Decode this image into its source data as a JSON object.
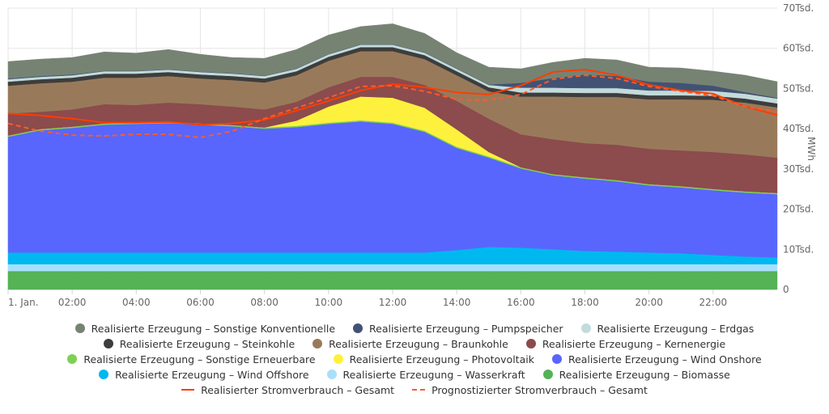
{
  "chart_data": {
    "type": "area",
    "stacked": true,
    "x_labels": [
      "1. Jan.",
      "02:00",
      "04:00",
      "06:00",
      "08:00",
      "10:00",
      "12:00",
      "14:00",
      "16:00",
      "18:00",
      "20:00",
      "22:00"
    ],
    "x_hours": [
      0,
      1,
      2,
      3,
      4,
      5,
      6,
      7,
      8,
      9,
      10,
      11,
      12,
      13,
      14,
      15,
      16,
      17,
      18,
      19,
      20,
      21,
      22,
      23,
      24
    ],
    "ylabel": "MWh",
    "ylim": [
      0,
      70000
    ],
    "y_ticks": [
      "0",
      "10Tsd.",
      "20Tsd.",
      "30Tsd.",
      "40Tsd.",
      "50Tsd.",
      "60Tsd.",
      "70Tsd."
    ],
    "grid": true,
    "legend_position": "bottom",
    "series": [
      {
        "name": "Realisierte Erzeugung – Biomasse",
        "color": "#55b255",
        "values": [
          4600,
          4600,
          4600,
          4600,
          4600,
          4600,
          4600,
          4600,
          4600,
          4600,
          4600,
          4600,
          4600,
          4600,
          4600,
          4600,
          4600,
          4600,
          4600,
          4600,
          4600,
          4600,
          4600,
          4600,
          4600
        ]
      },
      {
        "name": "Realisierte Erzeugung – Wasserkraft",
        "color": "#a8e0fb",
        "values": [
          1700,
          1700,
          1700,
          1700,
          1700,
          1700,
          1700,
          1700,
          1700,
          1700,
          1700,
          1700,
          1700,
          1700,
          1700,
          1700,
          1700,
          1700,
          1700,
          1700,
          1700,
          1700,
          1700,
          1700,
          1700
        ]
      },
      {
        "name": "Realisierte Erzeugung – Wind Offshore",
        "color": "#00b8f0",
        "values": [
          2900,
          2900,
          2900,
          2900,
          2900,
          2900,
          2900,
          2900,
          2900,
          2900,
          2900,
          2900,
          2900,
          2900,
          3500,
          4300,
          4100,
          3700,
          3300,
          3100,
          2900,
          2700,
          2300,
          1900,
          1700
        ]
      },
      {
        "name": "Realisierte Erzeugung – Wind Onshore",
        "color": "#5866fd",
        "values": [
          28800,
          30400,
          31000,
          31800,
          32000,
          32200,
          31800,
          31400,
          30800,
          31200,
          32000,
          32600,
          32000,
          30000,
          25400,
          22200,
          19700,
          18400,
          18000,
          17500,
          16700,
          16400,
          16100,
          15900,
          15700
        ]
      },
      {
        "name": "Realisierte Erzeugung – Sonstige Erneuerbare",
        "color": "#7ed055",
        "values": [
          300,
          300,
          300,
          300,
          300,
          300,
          300,
          300,
          300,
          300,
          300,
          300,
          300,
          300,
          300,
          300,
          300,
          300,
          300,
          300,
          300,
          300,
          300,
          300,
          300
        ]
      },
      {
        "name": "Realisierte Erzeugung – Photovoltaik",
        "color": "#fdf13d",
        "values": [
          0,
          0,
          0,
          0,
          0,
          0,
          0,
          0,
          0,
          1300,
          4000,
          5900,
          6200,
          5700,
          4300,
          1100,
          0,
          0,
          0,
          0,
          0,
          0,
          0,
          0,
          0
        ]
      },
      {
        "name": "Realisierte Erzeugung – Kernenergie",
        "color": "#8c4b4c",
        "values": [
          5500,
          4300,
          4300,
          4800,
          4400,
          4800,
          4800,
          4600,
          4500,
          4700,
          4800,
          4900,
          5200,
          5700,
          7100,
          8300,
          8200,
          8700,
          8500,
          8800,
          8800,
          8900,
          9200,
          9200,
          8800
        ]
      },
      {
        "name": "Realisierte Erzeugung – Braunkohle",
        "color": "#987a5b",
        "values": [
          6900,
          7100,
          6900,
          6600,
          6800,
          6600,
          6400,
          6600,
          6700,
          6600,
          6600,
          6400,
          6400,
          6400,
          6400,
          6800,
          9400,
          10600,
          11500,
          11900,
          12300,
          12700,
          13000,
          12900,
          12500
        ]
      },
      {
        "name": "Realisierte Erzeugung – Steinkohle",
        "color": "#3d3d3d",
        "values": [
          1000,
          1000,
          1000,
          1000,
          1000,
          1000,
          1000,
          1000,
          1000,
          1000,
          1000,
          1000,
          1000,
          1000,
          1000,
          1000,
          1000,
          1000,
          1000,
          1000,
          1000,
          1000,
          1000,
          1000,
          1000
        ]
      },
      {
        "name": "Realisierte Erzeugung – Erdgas",
        "color": "#c3dbdb",
        "values": [
          600,
          600,
          600,
          600,
          600,
          600,
          600,
          600,
          600,
          600,
          600,
          600,
          600,
          600,
          600,
          600,
          1200,
          1200,
          1200,
          1200,
          1200,
          1200,
          1200,
          1200,
          1200
        ]
      },
      {
        "name": "Realisierte Erzeugung – Pumpspeicher",
        "color": "#425274",
        "values": [
          200,
          200,
          200,
          100,
          100,
          100,
          100,
          100,
          100,
          100,
          100,
          100,
          100,
          100,
          100,
          100,
          1200,
          2400,
          3400,
          3000,
          2200,
          1900,
          1300,
          400,
          200
        ]
      },
      {
        "name": "Realisierte Erzeugung – Sonstige Konventionelle",
        "color": "#768373",
        "values": [
          4200,
          4200,
          4200,
          4700,
          4400,
          4900,
          4300,
          3900,
          4300,
          4700,
          4700,
          4400,
          5100,
          4700,
          3900,
          4300,
          3500,
          3900,
          4000,
          4000,
          3600,
          3700,
          3600,
          4200,
          4000
        ]
      }
    ],
    "lines": [
      {
        "name": "Realisierter Stromverbrauch – Gesamt",
        "color": "#ff3d00",
        "dashed": false,
        "values": [
          43800,
          43300,
          42500,
          41500,
          41500,
          41700,
          41000,
          41300,
          42200,
          44500,
          46900,
          49500,
          51100,
          50300,
          49000,
          48500,
          50700,
          54100,
          54700,
          53300,
          50900,
          49500,
          48700,
          45500,
          43400
        ]
      },
      {
        "name": "Prognostizierter Stromverbrauch – Gesamt",
        "color": "#ff5a2a",
        "dashed": true,
        "values": [
          41300,
          39400,
          38400,
          38200,
          38600,
          38600,
          37800,
          39400,
          42500,
          45200,
          47700,
          50500,
          50700,
          49300,
          47300,
          47100,
          48500,
          52300,
          53300,
          52500,
          50500,
          49300,
          48200,
          45500,
          44200
        ]
      }
    ]
  },
  "legend": [
    {
      "label": "Realisierte Erzeugung – Sonstige Konventionelle",
      "color": "#768373",
      "kind": "dot"
    },
    {
      "label": "Realisierte Erzeugung – Pumpspeicher",
      "color": "#425274",
      "kind": "dot"
    },
    {
      "label": "Realisierte Erzeugung – Erdgas",
      "color": "#c3dbdb",
      "kind": "dot"
    },
    {
      "label": "Realisierte Erzeugung – Steinkohle",
      "color": "#3d3d3d",
      "kind": "dot"
    },
    {
      "label": "Realisierte Erzeugung – Braunkohle",
      "color": "#987a5b",
      "kind": "dot"
    },
    {
      "label": "Realisierte Erzeugung – Kernenergie",
      "color": "#8c4b4c",
      "kind": "dot"
    },
    {
      "label": "Realisierte Erzeugung – Sonstige Erneuerbare",
      "color": "#7ed055",
      "kind": "dot"
    },
    {
      "label": "Realisierte Erzeugung – Photovoltaik",
      "color": "#fdf13d",
      "kind": "dot"
    },
    {
      "label": "Realisierte Erzeugung – Wind Onshore",
      "color": "#5866fd",
      "kind": "dot"
    },
    {
      "label": "Realisierte Erzeugung – Wind Offshore",
      "color": "#00b8f0",
      "kind": "dot"
    },
    {
      "label": "Realisierte Erzeugung – Wasserkraft",
      "color": "#a8e0fb",
      "kind": "dot"
    },
    {
      "label": "Realisierte Erzeugung – Biomasse",
      "color": "#55b255",
      "kind": "dot"
    },
    {
      "label": "Realisierter Stromverbrauch – Gesamt",
      "color": "#ff3d00",
      "kind": "line"
    },
    {
      "label": "Prognostizierter Stromverbrauch – Gesamt",
      "color": "#ff5a2a",
      "kind": "dash"
    }
  ]
}
